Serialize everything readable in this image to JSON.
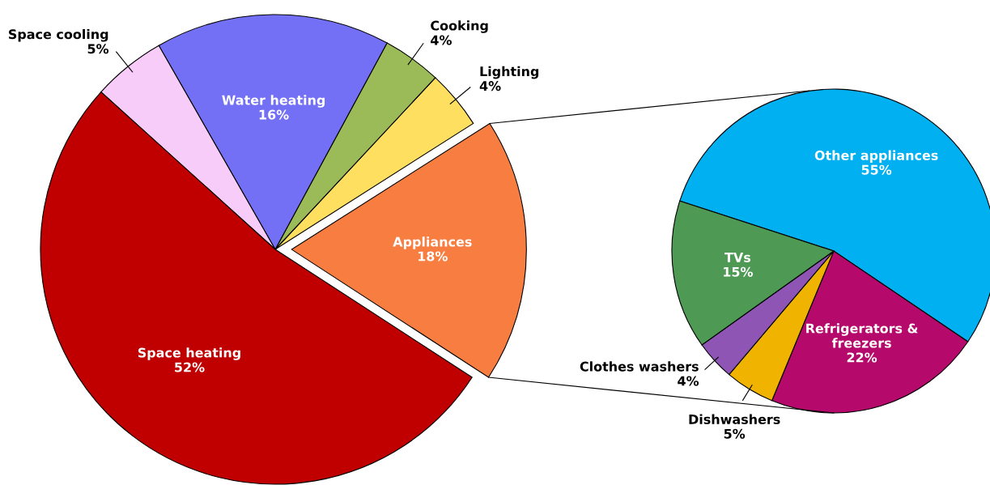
{
  "chart_data": [
    {
      "type": "pie",
      "categories": [
        "Appliances",
        "Lighting",
        "Cooking",
        "Water heating",
        "Space cooling",
        "Space heating"
      ],
      "values": [
        18,
        4,
        4,
        16,
        5,
        52
      ],
      "colors": [
        "#f87d40",
        "#ffdf5f",
        "#9bbb59",
        "#7370f5",
        "#f8ccf8",
        "#c00000"
      ],
      "value_labels": [
        "18%",
        "4%",
        "4%",
        "16%",
        "5%",
        "52%"
      ]
    },
    {
      "type": "pie",
      "categories": [
        "Other appliances",
        "Refrigerators & freezers",
        "Dishwashers",
        "Clothes washers",
        "TVs"
      ],
      "values": [
        55,
        22,
        5,
        4,
        15
      ],
      "colors": [
        "#00b0f0",
        "#b5096b",
        "#f0b400",
        "#8e55b5",
        "#4e9a55"
      ],
      "value_labels": [
        "55%",
        "22%",
        "5%",
        "4%",
        "15%"
      ]
    }
  ]
}
